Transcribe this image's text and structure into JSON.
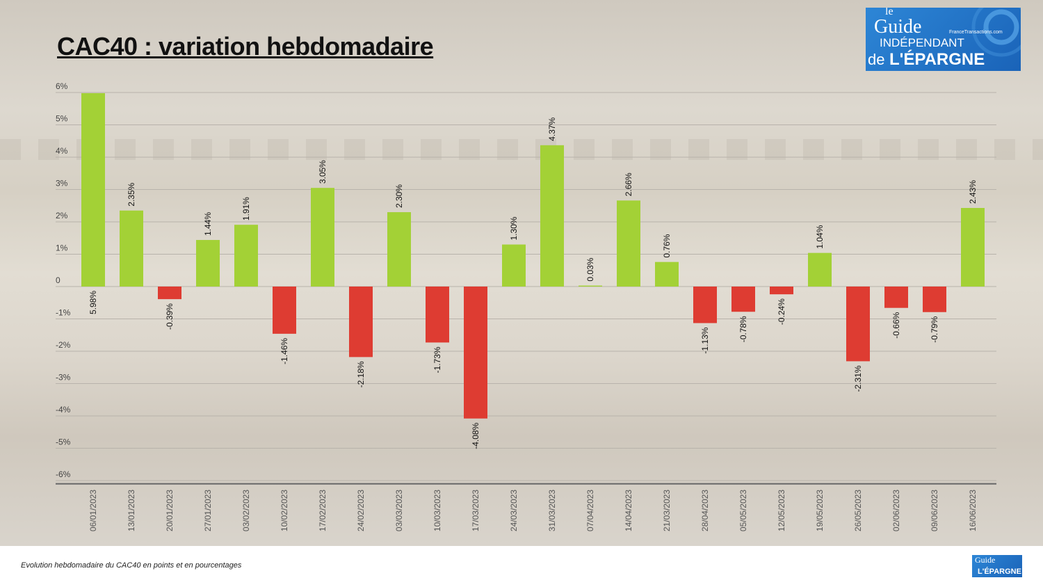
{
  "title": "CAC40 : variation hebdomadaire",
  "caption": "Evolution hebdomadaire du CAC40 en points et en pourcentages",
  "logo": {
    "line1": "le",
    "line2": "Guide",
    "line3": "INDÉPENDANT",
    "line4": "de",
    "line5": "L'ÉPARGNE",
    "site": "FranceTransactions.com"
  },
  "colors": {
    "positive": "#a3d136",
    "negative": "#de3c32",
    "grid": "#b8b3ab",
    "axis": "#666666"
  },
  "chart_data": {
    "type": "bar",
    "title": "CAC40 : variation hebdomadaire",
    "categories": [
      "06/01/2023",
      "13/01/2023",
      "20/01/2023",
      "27/01/2023",
      "03/02/2023",
      "10/02/2023",
      "17/02/2023",
      "24/02/2023",
      "03/03/2023",
      "10/03/2023",
      "17/03/2023",
      "24/03/2023",
      "31/03/2023",
      "07/04/2023",
      "14/04/2023",
      "21/03/2023",
      "28/04/2023",
      "05/05/2023",
      "12/05/2023",
      "19/05/2023",
      "26/05/2023",
      "02/06/2023",
      "09/06/2023",
      "16/06/2023"
    ],
    "values": [
      5.98,
      2.35,
      -0.39,
      1.44,
      1.91,
      -1.46,
      3.05,
      -2.18,
      2.3,
      -1.73,
      -4.08,
      1.3,
      4.37,
      0.03,
      2.66,
      0.76,
      -1.13,
      -0.78,
      -0.24,
      1.04,
      -2.31,
      -0.66,
      -0.79,
      2.43
    ],
    "data_labels": [
      "5.98%",
      "2.35%",
      "-0.39%",
      "1.44%",
      "1.91%",
      "-1.46%",
      "3.05%",
      "-2.18%",
      "2.30%",
      "-1.73%",
      "-4.08%",
      "1.30%",
      "4.37%",
      "0.03%",
      "2.66%",
      "0.76%",
      "-1.13%",
      "-0.78%",
      "-0.24%",
      "1.04%",
      "-2.31%",
      "-0.66%",
      "-0.79%",
      "2.43%"
    ],
    "yticks": [
      6,
      5,
      4,
      3,
      2,
      1,
      0,
      -1,
      -2,
      -3,
      -4,
      -5,
      -6
    ],
    "ytick_labels": [
      "6%",
      "5%",
      "4%",
      "3%",
      "2%",
      "1%",
      "0",
      "-1%",
      "-2%",
      "-3%",
      "-4%",
      "-5%",
      "-6%"
    ],
    "ylim": [
      -6.1,
      6
    ],
    "xlabel": "",
    "ylabel": "",
    "grid": true,
    "legend": "none"
  }
}
